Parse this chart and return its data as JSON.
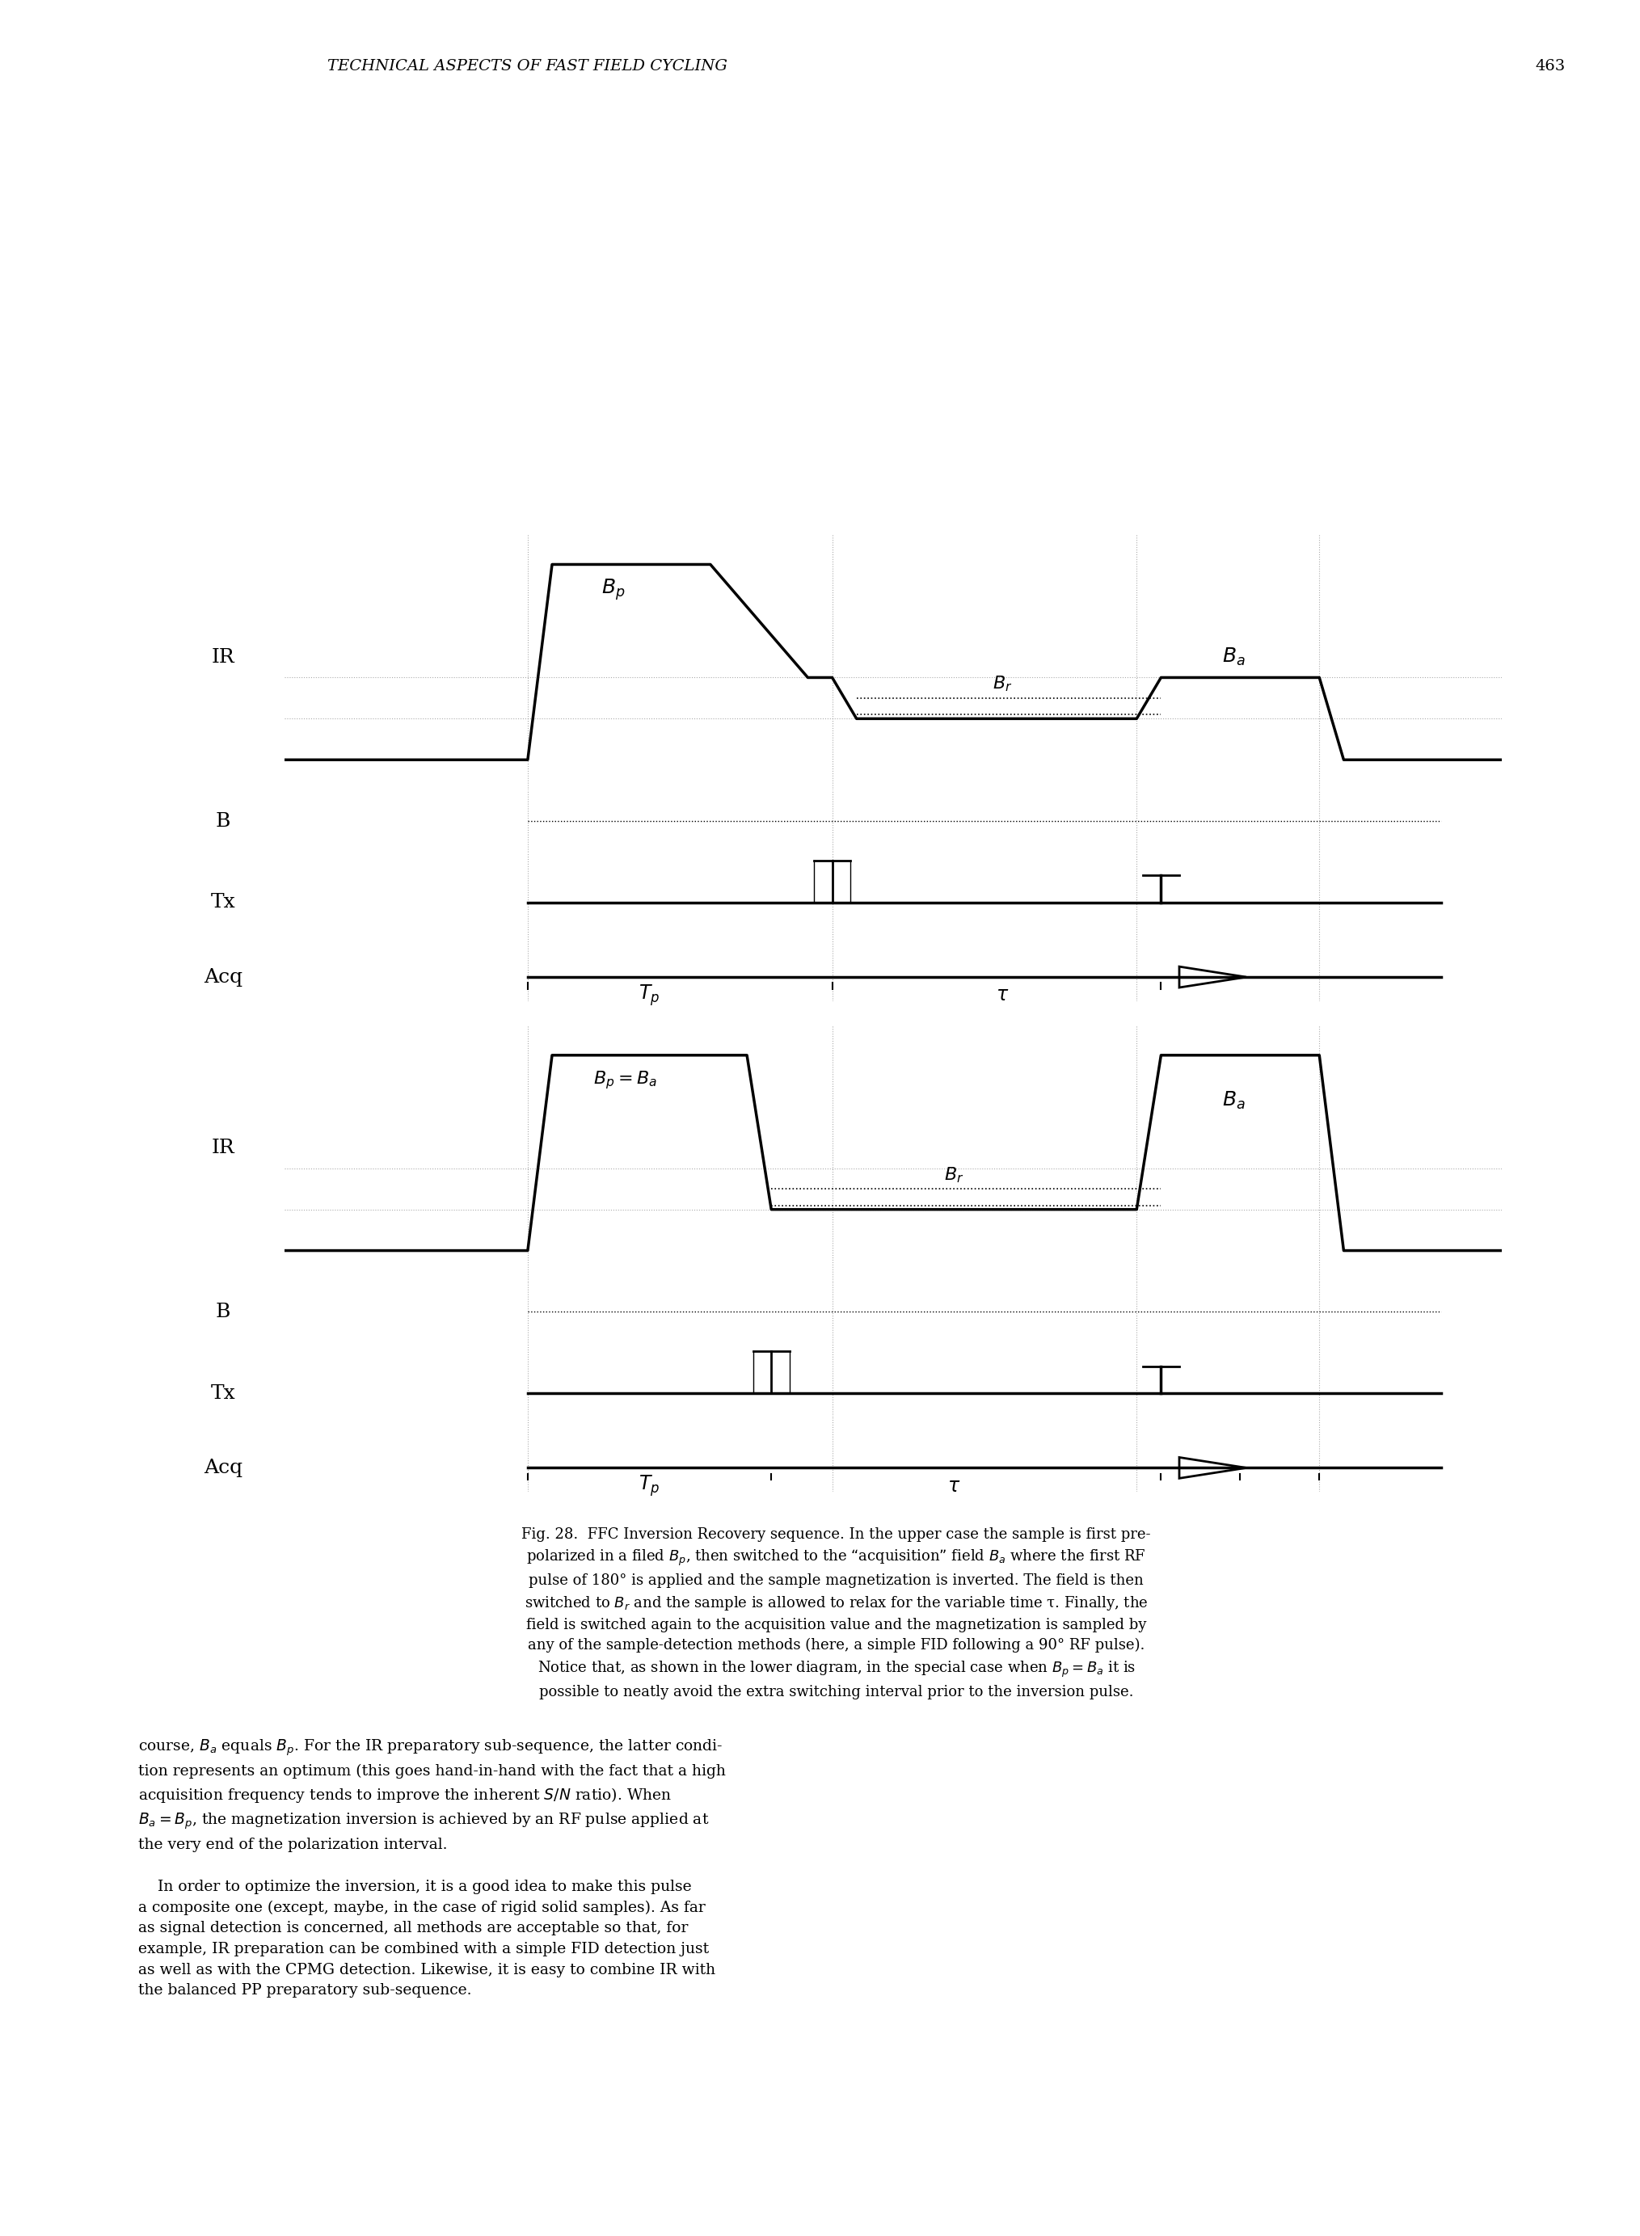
{
  "page_header": "TECHNICAL ASPECTS OF FAST FIELD CYCLING",
  "page_number": "463",
  "fig_caption": "Fig. 28.  FFC Inversion Recovery sequence. In the upper case the sample is first prepolarized in a filed $B_p$, then switched to the “acquisition” field $B_a$ where the first RF pulse of 180° is applied and the sample magnetization is inverted. The field is then switched to $B_r$ and the sample is allowed to relax for the variable time τ. Finally, the field is switched again to the acquisition value and the magnetization is sampled by any of the sample-detection methods (here, a simple FID following a 90° RF pulse). Notice that, as shown in the lower diagram, in the special case when $B_p = B_a$ it is possible to neatly avoid the extra switching interval prior to the inversion pulse.",
  "background_color": "#ffffff",
  "line_color": "#000000",
  "dotted_color": "#000000"
}
